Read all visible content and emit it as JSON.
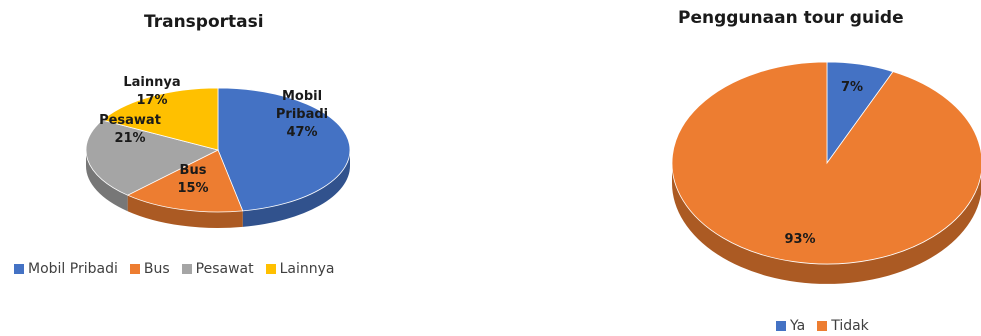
{
  "chart_data": [
    {
      "type": "pie",
      "title": "Transportasi",
      "categories": [
        "Mobil Pribadi",
        "Bus",
        "Pesawat",
        "Lainnya"
      ],
      "values": [
        47,
        15,
        21,
        17
      ],
      "labels": [
        {
          "line1": "Mobil",
          "line2": "Pribadi",
          "line3": "47%"
        },
        {
          "line1": "Bus",
          "line2": "15%"
        },
        {
          "line1": "Pesawat",
          "line2": "21%"
        },
        {
          "line1": "Lainnya",
          "line2": "17%"
        }
      ],
      "colors": [
        "#4472C4",
        "#ED7D31",
        "#A5A5A5",
        "#FFC000"
      ],
      "legend_position": "bottom"
    },
    {
      "type": "pie",
      "title": "Penggunaan tour guide",
      "categories": [
        "Ya",
        "Tidak"
      ],
      "values": [
        7,
        93
      ],
      "labels": [
        {
          "line1": "7%"
        },
        {
          "line1": "93%"
        }
      ],
      "colors": [
        "#4472C4",
        "#ED7D31"
      ],
      "legend_position": "bottom"
    }
  ]
}
